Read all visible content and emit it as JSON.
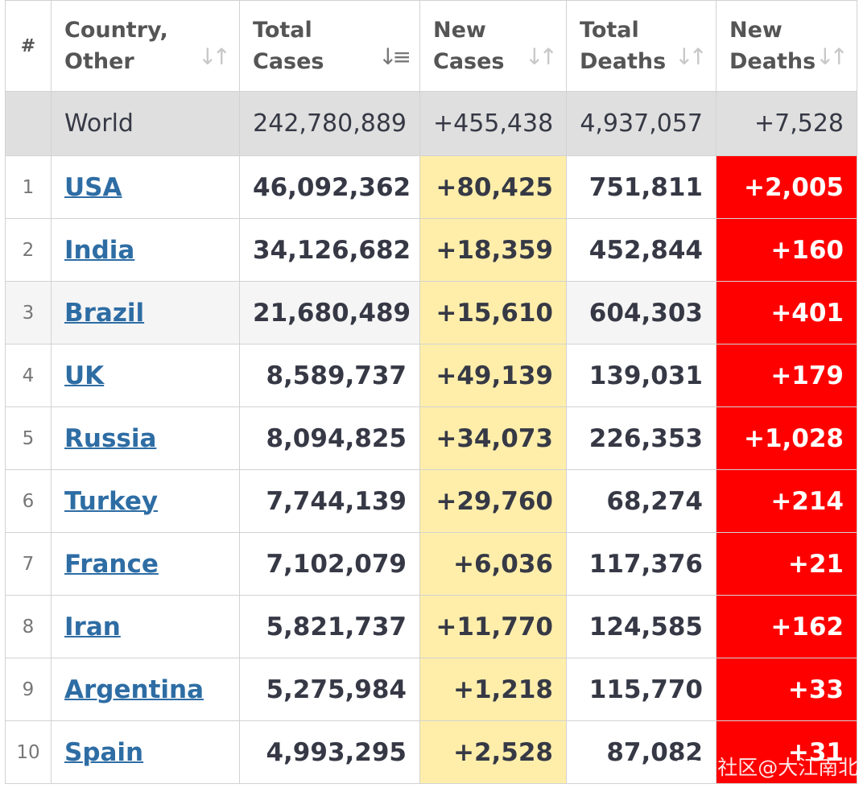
{
  "columns": {
    "rank": "#",
    "country": [
      "Country,",
      "Other"
    ],
    "total_cases": [
      "Total",
      "Cases"
    ],
    "new_cases": [
      "New",
      "Cases"
    ],
    "total_deaths": [
      "Total",
      "Deaths"
    ],
    "new_deaths": [
      "New",
      "Deaths"
    ]
  },
  "sort_icons": {
    "country": "sort-both-icon",
    "total_cases": "sort-descending-icon",
    "new_cases": "sort-both-icon",
    "total_deaths": "sort-both-icon",
    "new_deaths": "sort-both-icon"
  },
  "world": {
    "name": "World",
    "total_cases": "242,780,889",
    "new_cases": "+455,438",
    "total_deaths": "4,937,057",
    "new_deaths": "+7,528"
  },
  "rows": [
    {
      "rank": "1",
      "country": "USA",
      "total_cases": "46,092,362",
      "new_cases": "+80,425",
      "total_deaths": "751,811",
      "new_deaths": "+2,005"
    },
    {
      "rank": "2",
      "country": "India",
      "total_cases": "34,126,682",
      "new_cases": "+18,359",
      "total_deaths": "452,844",
      "new_deaths": "+160"
    },
    {
      "rank": "3",
      "country": "Brazil",
      "total_cases": "21,680,489",
      "new_cases": "+15,610",
      "total_deaths": "604,303",
      "new_deaths": "+401"
    },
    {
      "rank": "4",
      "country": "UK",
      "total_cases": "8,589,737",
      "new_cases": "+49,139",
      "total_deaths": "139,031",
      "new_deaths": "+179"
    },
    {
      "rank": "5",
      "country": "Russia",
      "total_cases": "8,094,825",
      "new_cases": "+34,073",
      "total_deaths": "226,353",
      "new_deaths": "+1,028"
    },
    {
      "rank": "6",
      "country": "Turkey",
      "total_cases": "7,744,139",
      "new_cases": "+29,760",
      "total_deaths": "68,274",
      "new_deaths": "+214"
    },
    {
      "rank": "7",
      "country": "France",
      "total_cases": "7,102,079",
      "new_cases": "+6,036",
      "total_deaths": "117,376",
      "new_deaths": "+21"
    },
    {
      "rank": "8",
      "country": "Iran",
      "total_cases": "5,821,737",
      "new_cases": "+11,770",
      "total_deaths": "124,585",
      "new_deaths": "+162"
    },
    {
      "rank": "9",
      "country": "Argentina",
      "total_cases": "5,275,984",
      "new_cases": "+1,218",
      "total_deaths": "115,770",
      "new_deaths": "+33"
    },
    {
      "rank": "10",
      "country": "Spain",
      "total_cases": "4,993,295",
      "new_cases": "+2,528",
      "total_deaths": "87,082",
      "new_deaths": "+31"
    }
  ],
  "colors": {
    "link": "#2e6da4",
    "new_cases_bg": "#ffeeaa",
    "new_deaths_bg": "#ff0000",
    "world_bg": "#dfdfdf",
    "text": "#363945"
  },
  "watermark": "CSDN社区@大江南北"
}
